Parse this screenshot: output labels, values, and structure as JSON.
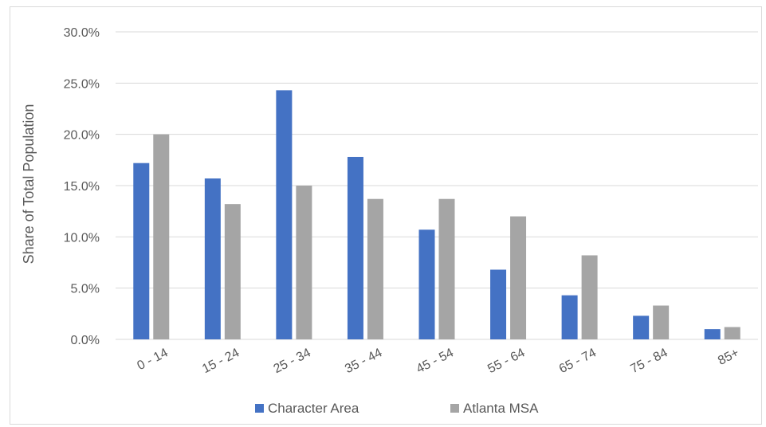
{
  "chart_data": {
    "type": "bar",
    "title": "",
    "xlabel": "",
    "ylabel": "Share of Total Population",
    "categories": [
      "0 - 14",
      "15 - 24",
      "25 - 34",
      "35 - 44",
      "45 - 54",
      "55 - 64",
      "65 - 74",
      "75 - 84",
      "85+"
    ],
    "series": [
      {
        "name": "Character Area",
        "color": "#4472C4",
        "values": [
          17.2,
          15.7,
          24.3,
          17.8,
          10.7,
          6.8,
          4.3,
          2.3,
          1.0
        ]
      },
      {
        "name": "Atlanta MSA",
        "color": "#A5A5A5",
        "values": [
          20.0,
          13.2,
          15.0,
          13.7,
          13.7,
          12.0,
          8.2,
          3.3,
          1.2
        ]
      }
    ],
    "ylim": [
      0,
      30
    ],
    "yticks": [
      "0.0%",
      "5.0%",
      "10.0%",
      "15.0%",
      "20.0%",
      "25.0%",
      "30.0%"
    ],
    "grid": true,
    "legend": "bottom"
  }
}
